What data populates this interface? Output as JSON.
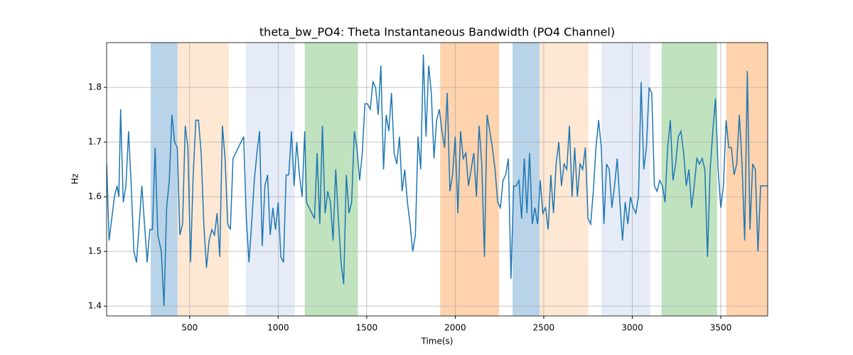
{
  "chart_data": {
    "type": "line",
    "title": "theta_bw_PO4: Theta Instantaneous Bandwidth (PO4 Channel)",
    "x_label": "Time(s)",
    "y_label": "Hz",
    "xlim": [
      31,
      3765
    ],
    "ylim": [
      1.382,
      1.882
    ],
    "xticks": [
      500,
      1000,
      1500,
      2000,
      2500,
      3000,
      3500
    ],
    "yticks": [
      1.4,
      1.5,
      1.6,
      1.7,
      1.8
    ],
    "grid": true,
    "spans": [
      {
        "x": [
          280,
          432
        ],
        "color": "#b9d4e8"
      },
      {
        "x": [
          432,
          721
        ],
        "color": "#ffe8d3"
      },
      {
        "x": [
          817,
          1094
        ],
        "color": "#e5ecf7"
      },
      {
        "x": [
          1150,
          1450
        ],
        "color": "#c0e2bf"
      },
      {
        "x": [
          1915,
          2248
        ],
        "color": "#ffd3ad"
      },
      {
        "x": [
          2324,
          2477
        ],
        "color": "#b9d4e8"
      },
      {
        "x": [
          2477,
          2753
        ],
        "color": "#ffe8d3"
      },
      {
        "x": [
          2826,
          3102
        ],
        "color": "#e5ecf7"
      },
      {
        "x": [
          3166,
          3479
        ],
        "color": "#c0e2bf"
      },
      {
        "x": [
          3531,
          3765
        ],
        "color": "#ffd3ad"
      }
    ],
    "series": [
      {
        "color": "#1f77b4",
        "x": [
          31,
          45,
          60,
          75,
          90,
          100,
          110,
          125,
          140,
          155,
          170,
          185,
          200,
          215,
          230,
          245,
          260,
          275,
          290,
          305,
          320,
          340,
          355,
          370,
          385,
          400,
          415,
          430,
          445,
          460,
          475,
          490,
          505,
          520,
          535,
          550,
          565,
          580,
          595,
          610,
          625,
          640,
          655,
          670,
          685,
          700,
          715,
          730,
          745,
          760,
          775,
          790,
          805,
          820,
          835,
          850,
          865,
          880,
          895,
          910,
          925,
          940,
          955,
          970,
          985,
          1000,
          1015,
          1030,
          1045,
          1060,
          1075,
          1090,
          1105,
          1120,
          1135,
          1150,
          1160,
          1175,
          1190,
          1205,
          1220,
          1235,
          1250,
          1265,
          1280,
          1295,
          1310,
          1325,
          1340,
          1355,
          1370,
          1385,
          1400,
          1415,
          1430,
          1445,
          1460,
          1475,
          1490,
          1505,
          1520,
          1535,
          1550,
          1565,
          1580,
          1595,
          1610,
          1625,
          1640,
          1655,
          1670,
          1685,
          1700,
          1715,
          1730,
          1745,
          1760,
          1775,
          1790,
          1805,
          1820,
          1835,
          1850,
          1865,
          1880,
          1895,
          1910,
          1925,
          1940,
          1955,
          1970,
          1985,
          2000,
          2015,
          2030,
          2045,
          2060,
          2075,
          2090,
          2105,
          2120,
          2135,
          2150,
          2165,
          2180,
          2195,
          2210,
          2225,
          2240,
          2255,
          2270,
          2285,
          2300,
          2315,
          2330,
          2345,
          2360,
          2375,
          2390,
          2405,
          2420,
          2435,
          2450,
          2465,
          2480,
          2495,
          2510,
          2525,
          2540,
          2555,
          2570,
          2585,
          2600,
          2615,
          2630,
          2645,
          2660,
          2675,
          2690,
          2705,
          2720,
          2735,
          2750,
          2765,
          2780,
          2795,
          2810,
          2825,
          2840,
          2855,
          2870,
          2885,
          2900,
          2915,
          2930,
          2945,
          2960,
          2975,
          2990,
          3005,
          3020,
          3035,
          3050,
          3065,
          3080,
          3095,
          3110,
          3125,
          3140,
          3155,
          3170,
          3185,
          3200,
          3215,
          3230,
          3245,
          3260,
          3275,
          3290,
          3305,
          3320,
          3335,
          3350,
          3365,
          3380,
          3395,
          3410,
          3425,
          3440,
          3455,
          3470,
          3485,
          3500,
          3515,
          3530,
          3545,
          3560,
          3575,
          3590,
          3605,
          3620,
          3635,
          3650,
          3665,
          3680,
          3695,
          3710,
          3725,
          3765
        ],
        "values": [
          1.66,
          1.52,
          1.56,
          1.6,
          1.62,
          1.6,
          1.76,
          1.59,
          1.62,
          1.72,
          1.62,
          1.5,
          1.48,
          1.55,
          1.62,
          1.55,
          1.48,
          1.54,
          1.54,
          1.69,
          1.53,
          1.5,
          1.4,
          1.58,
          1.63,
          1.75,
          1.7,
          1.69,
          1.53,
          1.55,
          1.73,
          1.69,
          1.48,
          1.64,
          1.74,
          1.74,
          1.68,
          1.55,
          1.47,
          1.52,
          1.54,
          1.53,
          1.57,
          1.49,
          1.73,
          1.67,
          1.55,
          1.54,
          1.67,
          1.68,
          1.69,
          1.7,
          1.71,
          1.56,
          1.48,
          1.55,
          1.63,
          1.68,
          1.72,
          1.51,
          1.62,
          1.64,
          1.53,
          1.58,
          1.54,
          1.59,
          1.49,
          1.48,
          1.64,
          1.64,
          1.72,
          1.62,
          1.7,
          1.64,
          1.6,
          1.72,
          1.59,
          1.58,
          1.57,
          1.56,
          1.68,
          1.55,
          1.73,
          1.57,
          1.61,
          1.59,
          1.52,
          1.65,
          1.56,
          1.48,
          1.44,
          1.64,
          1.57,
          1.59,
          1.72,
          1.69,
          1.63,
          1.68,
          1.77,
          1.77,
          1.76,
          1.81,
          1.8,
          1.75,
          1.84,
          1.65,
          1.75,
          1.72,
          1.79,
          1.68,
          1.66,
          1.71,
          1.61,
          1.65,
          1.59,
          1.55,
          1.5,
          1.53,
          1.71,
          1.65,
          1.86,
          1.71,
          1.84,
          1.79,
          1.67,
          1.74,
          1.76,
          1.72,
          1.69,
          1.79,
          1.61,
          1.64,
          1.71,
          1.57,
          1.72,
          1.67,
          1.68,
          1.62,
          1.65,
          1.68,
          1.6,
          1.73,
          1.66,
          1.49,
          1.75,
          1.72,
          1.69,
          1.65,
          1.59,
          1.58,
          1.63,
          1.64,
          1.67,
          1.45,
          1.62,
          1.62,
          1.63,
          1.56,
          1.67,
          1.57,
          1.68,
          1.55,
          1.58,
          1.55,
          1.63,
          1.57,
          1.58,
          1.54,
          1.64,
          1.57,
          1.66,
          1.7,
          1.62,
          1.66,
          1.65,
          1.73,
          1.6,
          1.69,
          1.6,
          1.66,
          1.65,
          1.69,
          1.56,
          1.55,
          1.61,
          1.69,
          1.74,
          1.69,
          1.55,
          1.66,
          1.65,
          1.58,
          1.62,
          1.67,
          1.59,
          1.52,
          1.59,
          1.55,
          1.6,
          1.58,
          1.57,
          1.6,
          1.81,
          1.65,
          1.69,
          1.8,
          1.79,
          1.62,
          1.61,
          1.63,
          1.62,
          1.59,
          1.69,
          1.74,
          1.63,
          1.66,
          1.71,
          1.72,
          1.68,
          1.62,
          1.65,
          1.58,
          1.62,
          1.67,
          1.66,
          1.67,
          1.65,
          1.49,
          1.65,
          1.72,
          1.78,
          1.65,
          1.58,
          1.62,
          1.74,
          1.69,
          1.69,
          1.64,
          1.66,
          1.75,
          1.66,
          1.52,
          1.83,
          1.54,
          1.66,
          1.65,
          1.5,
          1.62,
          1.62
        ]
      }
    ]
  }
}
